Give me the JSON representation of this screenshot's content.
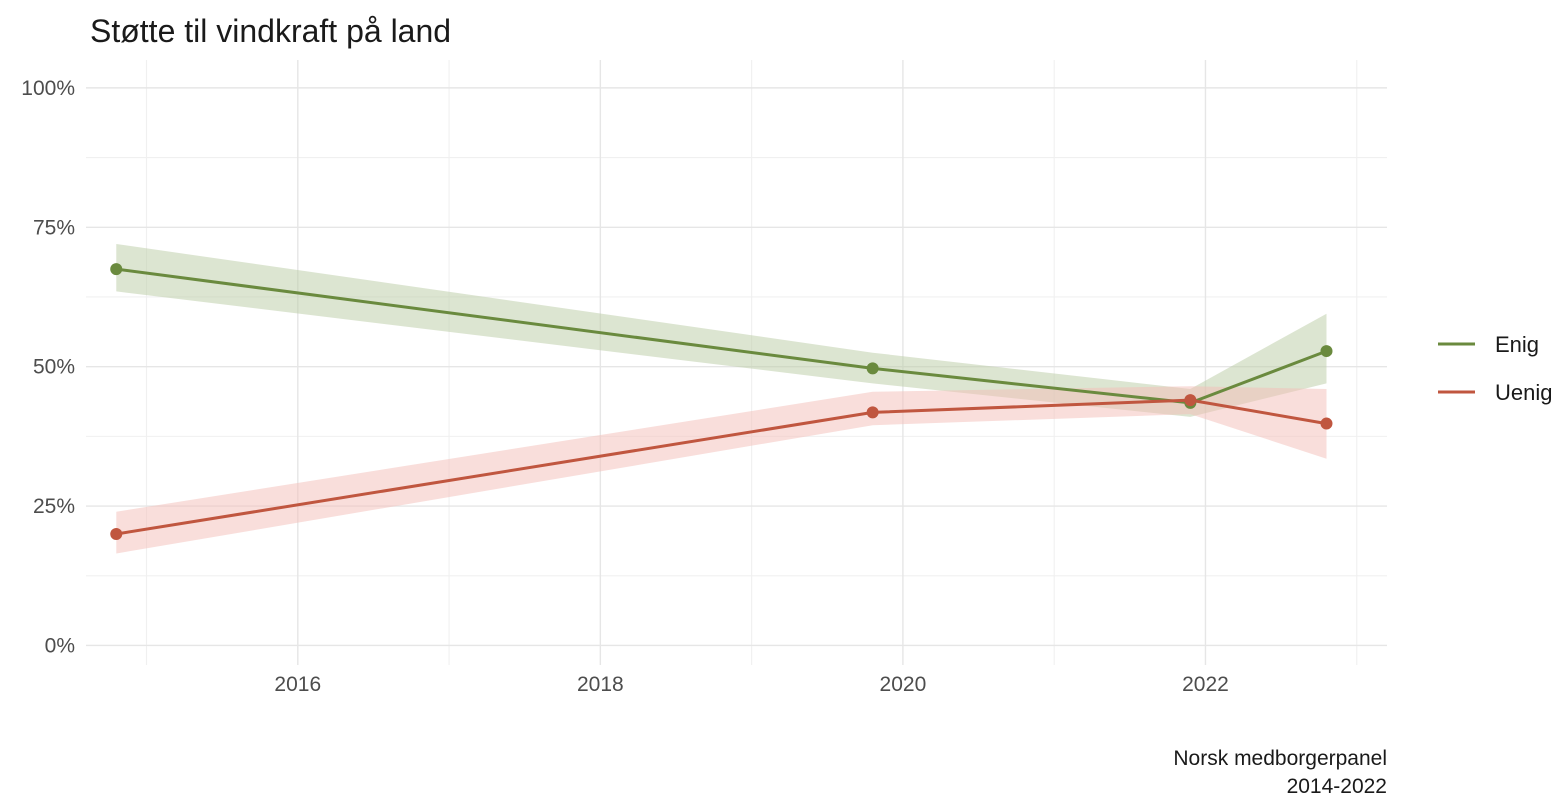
{
  "chart_data": {
    "type": "line",
    "title": "Støtte til vindkraft på land",
    "caption": [
      "Norsk medborgerpanel",
      "2014-2022"
    ],
    "xlabel": "",
    "ylabel": "",
    "xlim": [
      2014.6,
      2023.2
    ],
    "ylim": [
      -0.035,
      1.05
    ],
    "x_ticks": [
      {
        "value": 2016,
        "label": "2016"
      },
      {
        "value": 2018,
        "label": "2018"
      },
      {
        "value": 2020,
        "label": "2020"
      },
      {
        "value": 2022,
        "label": "2022"
      }
    ],
    "y_ticks": [
      {
        "value": 0,
        "label": "0%"
      },
      {
        "value": 0.25,
        "label": "25%"
      },
      {
        "value": 0.5,
        "label": "50%"
      },
      {
        "value": 0.75,
        "label": "75%"
      },
      {
        "value": 1,
        "label": "100%"
      }
    ],
    "grid": true,
    "legend_position": "right",
    "series": [
      {
        "name": "Enig",
        "color": "#6a8a3e",
        "band_color": "#b9cba3",
        "x": [
          2014.8,
          2019.8,
          2021.9,
          2022.8
        ],
        "y": [
          0.675,
          0.497,
          0.435,
          0.528
        ],
        "lower": [
          0.635,
          0.47,
          0.41,
          0.47
        ],
        "upper": [
          0.72,
          0.525,
          0.46,
          0.595
        ]
      },
      {
        "name": "Uenig",
        "color": "#c0563f",
        "band_color": "#f3bdb8",
        "x": [
          2014.8,
          2019.8,
          2021.9,
          2022.8
        ],
        "y": [
          0.2,
          0.418,
          0.44,
          0.398
        ],
        "lower": [
          0.165,
          0.395,
          0.415,
          0.335
        ],
        "upper": [
          0.24,
          0.455,
          0.465,
          0.46
        ]
      }
    ]
  }
}
